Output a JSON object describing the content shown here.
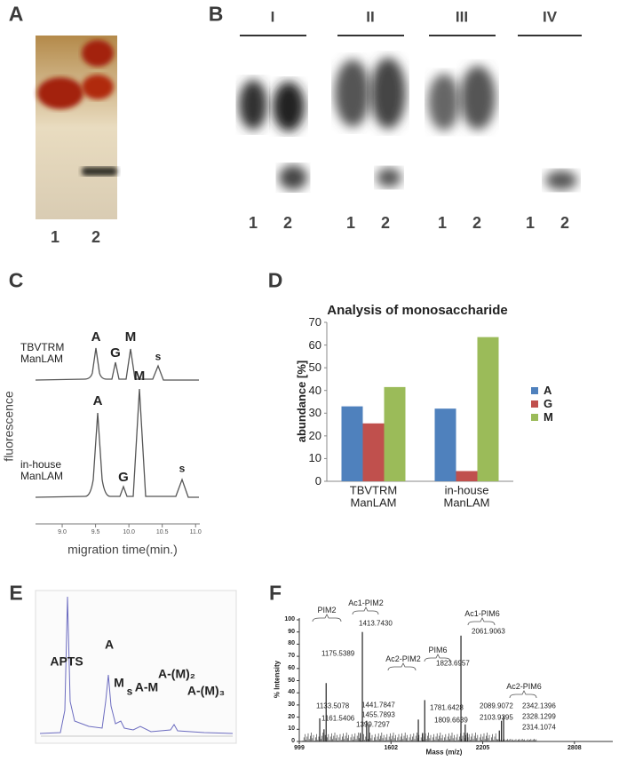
{
  "panels": {
    "A": {
      "letter": "A",
      "lanes": [
        "1",
        "2"
      ]
    },
    "B": {
      "letter": "B",
      "groups": [
        "I",
        "II",
        "III",
        "IV"
      ],
      "lanes": [
        "1",
        "2"
      ]
    },
    "C": {
      "letter": "C",
      "traces": [
        {
          "label": "TBVTRM ManLAM",
          "peaks": [
            "A",
            "G",
            "M",
            "s"
          ]
        },
        {
          "label": "in-house ManLAM",
          "peaks": [
            "A",
            "G",
            "M",
            "s"
          ]
        }
      ],
      "y_label": "fluorescence",
      "x_label": "migration time(min.)",
      "xlim": [
        8.6,
        11.05
      ],
      "xticks": [
        {
          "value": 9,
          "label": "9.0"
        },
        9.5,
        {
          "value": 10,
          "label": "10.0"
        },
        10.5,
        {
          "value": 11,
          "label": "11.0"
        }
      ]
    },
    "D": {
      "letter": "D",
      "chart": {
        "type": "bar",
        "title": "Analysis of monosaccharide",
        "y_label": "abundance [%]",
        "categories": [
          "TBVTRM ManLAM",
          "in-house ManLAM"
        ],
        "series": [
          {
            "name": "A",
            "color": "#4f81bd",
            "values": [
              33,
              32
            ]
          },
          {
            "name": "G",
            "color": "#c0504d",
            "values": [
              25.5,
              4.5
            ]
          },
          {
            "name": "M",
            "color": "#9bbb59",
            "values": [
              41.5,
              63.5
            ]
          }
        ],
        "ylim": [
          0,
          70
        ],
        "yticks": [
          0,
          10,
          20,
          30,
          40,
          50,
          60,
          70
        ],
        "grid": false,
        "legend": "right"
      }
    },
    "E": {
      "letter": "E",
      "peaks": [
        "APTS",
        "A",
        "M",
        "s",
        "A-M",
        "A-(M)₂",
        "A-(M)₃"
      ]
    },
    "F": {
      "letter": "F",
      "chart": {
        "type": "spectrum",
        "x_label": "Mass (m/z)",
        "y_label": "% Intensity",
        "xlim": [
          999,
          3060
        ],
        "xticks": [
          999,
          1602,
          2205,
          2808
        ],
        "ylim": [
          0,
          100
        ],
        "yticks": [
          0,
          10,
          20,
          30,
          40,
          50,
          60,
          70,
          80,
          90,
          100
        ],
        "color": "#222222",
        "x": [
          1175.5389,
          1133.5078,
          1161.5406,
          1413.743,
          1441.7847,
          1455.7893,
          1399.7297,
          1823.6957,
          1781.6428,
          1809.6639,
          2061.9063,
          2089.9072,
          2103.9395,
          2342.1396,
          2328.1299,
          2314.1074
        ],
        "x_labels": [
          "1175.5389",
          "1133.5078",
          "1161.5406",
          "1413.7430",
          "1441.7847",
          "1455.7893",
          "1399.7297",
          "1823.6957",
          "1781.6428",
          "1809.6639",
          "2061.9063",
          "2089.9072",
          "2103.9395",
          "2342.1396",
          "2328.1299",
          "2314.1074"
        ],
        "values": [
          48,
          19,
          10,
          90,
          17,
          14,
          7,
          34,
          18,
          7,
          87,
          14,
          7,
          21,
          17,
          9
        ],
        "groups": [
          "PIM2",
          "Ac1-PIM2",
          "Ac2-PIM2",
          "PIM6",
          "Ac1-PIM6",
          "Ac2-PIM6"
        ]
      }
    }
  }
}
